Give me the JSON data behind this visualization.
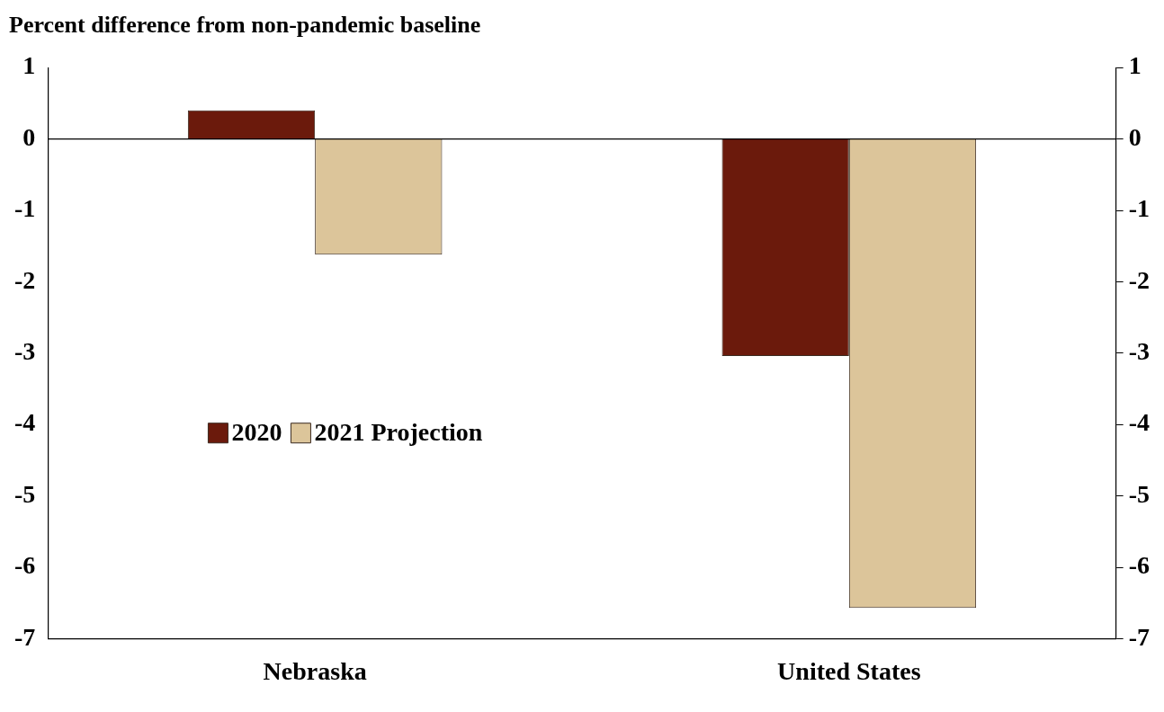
{
  "chart_data": {
    "type": "bar",
    "title": "Percent difference from non-pandemic baseline",
    "categories": [
      "Nebraska",
      "United States"
    ],
    "series": [
      {
        "name": "2020",
        "color": "#6b1a0c",
        "values": [
          0.4,
          -3.04
        ]
      },
      {
        "name": "2021 Projection",
        "color": "#dcc59a",
        "values": [
          -1.62,
          -6.57
        ]
      }
    ],
    "ylim": [
      -7,
      1
    ],
    "yticks": [
      -7,
      -6,
      -5,
      -4,
      -3,
      -2,
      -1,
      0,
      1
    ],
    "y2lim": [
      -7,
      1
    ],
    "y2ticks": [
      -7,
      -6,
      -5,
      -4,
      -3,
      -2,
      -1,
      0,
      1
    ],
    "ref_lines": [
      {
        "axis": "y",
        "value": 0,
        "color": "#000000"
      }
    ],
    "grid": false,
    "legend": "left"
  }
}
